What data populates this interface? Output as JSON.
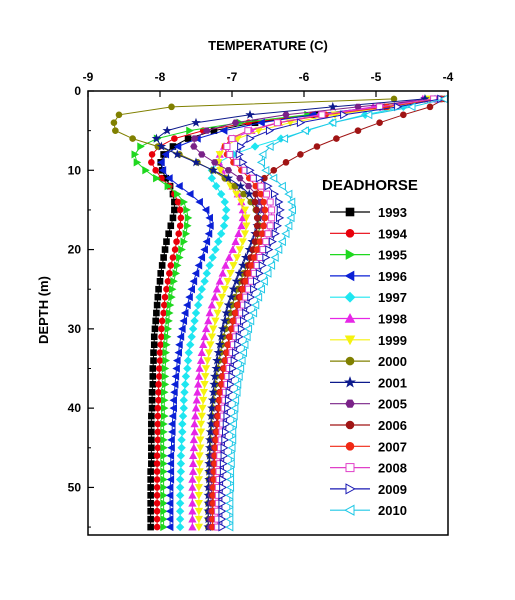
{
  "chart_data": {
    "type": "line",
    "title": "DEADHORSE",
    "xlabel": "TEMPERATURE (C)",
    "ylabel": "DEPTH (m)",
    "xlim": [
      -9,
      -4
    ],
    "ylim": [
      0,
      56
    ],
    "y_inverted": true,
    "x_axis_position": "top",
    "xticks": [
      -9,
      -8,
      -7,
      -6,
      -5,
      -4
    ],
    "yticks": [
      0,
      10,
      20,
      30,
      40,
      50
    ],
    "grid": false,
    "legend_position": "right",
    "depths": [
      1,
      2,
      3,
      4,
      5,
      6,
      7,
      8,
      9,
      10,
      11,
      12,
      13,
      14,
      15,
      16,
      17,
      18,
      19,
      20,
      21,
      22,
      23,
      24,
      25,
      26,
      27,
      28,
      29,
      30,
      31,
      32,
      33,
      34,
      35,
      36,
      37,
      38,
      39,
      40,
      41,
      42,
      43,
      44,
      45,
      46,
      47,
      48,
      49,
      50,
      51,
      52,
      53,
      54,
      55
    ],
    "series": [
      {
        "name": "1993",
        "color": "#000000",
        "marker": "square",
        "fill": true,
        "values": [
          -4.12,
          -4.85,
          -5.84,
          -6.68,
          -7.25,
          -7.61,
          -7.82,
          -7.95,
          -7.99,
          -7.97,
          -7.92,
          -7.86,
          -7.82,
          -7.8,
          -7.8,
          -7.82,
          -7.85,
          -7.88,
          -7.91,
          -7.93,
          -7.95,
          -7.97,
          -7.99,
          -8.0,
          -8.02,
          -8.03,
          -8.04,
          -8.05,
          -8.06,
          -8.07,
          -8.08,
          -8.08,
          -8.09,
          -8.09,
          -8.1,
          -8.1,
          -8.1,
          -8.11,
          -8.11,
          -8.11,
          -8.12,
          -8.12,
          -8.12,
          -8.12,
          -8.12,
          -8.12,
          -8.12,
          -8.13,
          -8.13,
          -8.13,
          -8.13,
          -8.13,
          -8.13,
          -8.13,
          -8.13
        ]
      },
      {
        "name": "1994",
        "color": "#e8000b",
        "marker": "circle",
        "fill": true,
        "values": [
          -4.17,
          -4.87,
          -5.89,
          -6.77,
          -7.4,
          -7.8,
          -8.01,
          -8.11,
          -8.12,
          -8.06,
          -7.98,
          -7.87,
          -7.8,
          -7.75,
          -7.72,
          -7.71,
          -7.72,
          -7.74,
          -7.77,
          -7.79,
          -7.82,
          -7.85,
          -7.87,
          -7.89,
          -7.91,
          -7.93,
          -7.94,
          -7.95,
          -7.97,
          -7.98,
          -7.98,
          -7.99,
          -8.0,
          -8.0,
          -8.01,
          -8.01,
          -8.02,
          -8.02,
          -8.02,
          -8.03,
          -8.03,
          -8.03,
          -8.03,
          -8.03,
          -8.03,
          -8.04,
          -8.04,
          -8.04,
          -8.04,
          -8.04,
          -8.04,
          -8.04,
          -8.04,
          -8.04,
          -8.04
        ]
      },
      {
        "name": "1995",
        "color": "#1fd81f",
        "marker": "triangle-right",
        "fill": true,
        "values": [
          -4.28,
          -4.91,
          -5.95,
          -6.89,
          -7.59,
          -8.04,
          -8.27,
          -8.35,
          -8.32,
          -8.2,
          -8.05,
          -7.89,
          -7.76,
          -7.67,
          -7.63,
          -7.61,
          -7.62,
          -7.64,
          -7.67,
          -7.7,
          -7.73,
          -7.76,
          -7.78,
          -7.81,
          -7.83,
          -7.84,
          -7.86,
          -7.87,
          -7.88,
          -7.89,
          -7.9,
          -7.91,
          -7.92,
          -7.92,
          -7.93,
          -7.93,
          -7.93,
          -7.94,
          -7.94,
          -7.94,
          -7.94,
          -7.95,
          -7.95,
          -7.95,
          -7.95,
          -7.95,
          -7.95,
          -7.95,
          -7.95,
          -7.95,
          -7.95,
          -7.95,
          -7.95,
          -7.95,
          -7.95
        ]
      },
      {
        "name": "1996",
        "color": "#0a1fd6",
        "marker": "triangle-left",
        "fill": true,
        "values": [
          -4.22,
          -4.98,
          -5.88,
          -6.59,
          -7.11,
          -7.48,
          -7.75,
          -7.92,
          -7.98,
          -7.96,
          -7.87,
          -7.73,
          -7.58,
          -7.45,
          -7.36,
          -7.31,
          -7.3,
          -7.32,
          -7.35,
          -7.38,
          -7.42,
          -7.46,
          -7.5,
          -7.53,
          -7.56,
          -7.59,
          -7.62,
          -7.65,
          -7.67,
          -7.69,
          -7.71,
          -7.73,
          -7.74,
          -7.76,
          -7.77,
          -7.78,
          -7.79,
          -7.8,
          -7.81,
          -7.81,
          -7.82,
          -7.83,
          -7.83,
          -7.84,
          -7.84,
          -7.85,
          -7.85,
          -7.85,
          -7.85,
          -7.86,
          -7.86,
          -7.86,
          -7.86,
          -7.86,
          -7.86
        ]
      },
      {
        "name": "1997",
        "color": "#1ee6f0",
        "marker": "diamond",
        "fill": true,
        "values": [
          -4.18,
          -4.62,
          -5.15,
          -5.6,
          -5.96,
          -6.32,
          -6.68,
          -6.98,
          -7.19,
          -7.28,
          -7.28,
          -7.22,
          -7.15,
          -7.1,
          -7.08,
          -7.09,
          -7.11,
          -7.15,
          -7.19,
          -7.23,
          -7.27,
          -7.31,
          -7.35,
          -7.38,
          -7.42,
          -7.45,
          -7.47,
          -7.5,
          -7.52,
          -7.54,
          -7.56,
          -7.58,
          -7.6,
          -7.61,
          -7.62,
          -7.64,
          -7.65,
          -7.66,
          -7.67,
          -7.67,
          -7.68,
          -7.69,
          -7.69,
          -7.7,
          -7.7,
          -7.71,
          -7.71,
          -7.71,
          -7.72,
          -7.72,
          -7.72,
          -7.72,
          -7.72,
          -7.72,
          -7.72
        ]
      },
      {
        "name": "1998",
        "color": "#e626e6",
        "marker": "triangle-up",
        "fill": true,
        "values": [
          -4.35,
          -5.04,
          -5.79,
          -6.35,
          -6.73,
          -6.98,
          -7.11,
          -7.17,
          -7.18,
          -7.14,
          -7.07,
          -6.99,
          -6.92,
          -6.87,
          -6.85,
          -6.85,
          -6.87,
          -6.91,
          -6.95,
          -6.99,
          -7.04,
          -7.09,
          -7.13,
          -7.17,
          -7.21,
          -7.24,
          -7.28,
          -7.31,
          -7.33,
          -7.36,
          -7.38,
          -7.4,
          -7.42,
          -7.43,
          -7.45,
          -7.46,
          -7.47,
          -7.48,
          -7.49,
          -7.5,
          -7.51,
          -7.52,
          -7.52,
          -7.53,
          -7.53,
          -7.54,
          -7.54,
          -7.54,
          -7.55,
          -7.55,
          -7.55,
          -7.55,
          -7.55,
          -7.55,
          -7.55
        ]
      },
      {
        "name": "1999",
        "color": "#f5f20f",
        "marker": "triangle-down",
        "fill": true,
        "values": [
          -4.25,
          -4.82,
          -5.57,
          -6.19,
          -6.63,
          -6.92,
          -7.09,
          -7.17,
          -7.19,
          -7.16,
          -7.1,
          -7.02,
          -6.94,
          -6.87,
          -6.82,
          -6.8,
          -6.8,
          -6.82,
          -6.85,
          -6.89,
          -6.93,
          -6.98,
          -7.02,
          -7.06,
          -7.1,
          -7.14,
          -7.17,
          -7.2,
          -7.23,
          -7.26,
          -7.28,
          -7.3,
          -7.32,
          -7.34,
          -7.36,
          -7.37,
          -7.38,
          -7.39,
          -7.4,
          -7.41,
          -7.42,
          -7.43,
          -7.43,
          -7.44,
          -7.44,
          -7.45,
          -7.45,
          -7.45,
          -7.46,
          -7.46,
          -7.46,
          -7.46,
          -7.46,
          -7.46,
          -7.46
        ]
      },
      {
        "name": "2000",
        "color": "#808000",
        "marker": "circle",
        "fill": true,
        "values": [
          -4.75,
          -7.84,
          -8.57,
          -8.64,
          -8.62,
          -8.38,
          -8.03,
          -7.73,
          -7.48,
          -7.27,
          -7.1,
          -6.96,
          -6.84,
          -6.74,
          -6.67,
          -6.63,
          -6.62,
          -6.63,
          -6.66,
          -6.7,
          -6.74,
          -6.79,
          -6.84,
          -6.88,
          -6.92,
          -6.96,
          -7.0,
          -7.03,
          -7.06,
          -7.09,
          -7.12,
          -7.14,
          -7.16,
          -7.18,
          -7.2,
          -7.22,
          -7.23,
          -7.24,
          -7.26,
          -7.27,
          -7.28,
          -7.28,
          -7.29,
          -7.3,
          -7.3,
          -7.31,
          -7.31,
          -7.32,
          -7.32,
          -7.32,
          -7.32,
          -7.33,
          -7.33,
          -7.33,
          -7.33
        ]
      },
      {
        "name": "2001",
        "color": "#0d1a8c",
        "marker": "star",
        "fill": true,
        "values": [
          -4.32,
          -5.6,
          -6.75,
          -7.5,
          -7.9,
          -8.05,
          -7.98,
          -7.76,
          -7.5,
          -7.26,
          -7.05,
          -6.88,
          -6.76,
          -6.68,
          -6.64,
          -6.63,
          -6.65,
          -6.68,
          -6.72,
          -6.76,
          -6.81,
          -6.85,
          -6.9,
          -6.94,
          -6.98,
          -7.01,
          -7.05,
          -7.08,
          -7.1,
          -7.13,
          -7.15,
          -7.17,
          -7.19,
          -7.21,
          -7.22,
          -7.24,
          -7.25,
          -7.26,
          -7.27,
          -7.28,
          -7.29,
          -7.29,
          -7.3,
          -7.31,
          -7.31,
          -7.31,
          -7.32,
          -7.32,
          -7.32,
          -7.33,
          -7.33,
          -7.33,
          -7.33,
          -7.33,
          -7.33
        ]
      },
      {
        "name": "2005",
        "color": "#7a2288",
        "marker": "hexagon",
        "fill": true,
        "values": [
          -4.15,
          -5.25,
          -6.25,
          -6.95,
          -7.35,
          -7.52,
          -7.53,
          -7.42,
          -7.24,
          -7.05,
          -6.89,
          -6.77,
          -6.67,
          -6.61,
          -6.57,
          -6.55,
          -6.56,
          -6.58,
          -6.61,
          -6.64,
          -6.68,
          -6.72,
          -6.76,
          -6.8,
          -6.84,
          -6.88,
          -6.91,
          -6.94,
          -6.97,
          -7.0,
          -7.03,
          -7.05,
          -7.08,
          -7.1,
          -7.12,
          -7.14,
          -7.15,
          -7.17,
          -7.18,
          -7.2,
          -7.21,
          -7.22,
          -7.23,
          -7.24,
          -7.25,
          -7.26,
          -7.26,
          -7.27,
          -7.28,
          -7.28,
          -7.29,
          -7.29,
          -7.29,
          -7.3,
          -7.3
        ]
      },
      {
        "name": "2006",
        "color": "#a01414",
        "marker": "circle",
        "fill": true,
        "values": [
          -4.05,
          -4.25,
          -4.62,
          -4.95,
          -5.25,
          -5.55,
          -5.82,
          -6.05,
          -6.25,
          -6.42,
          -6.55,
          -6.63,
          -6.67,
          -6.68,
          -6.66,
          -6.65,
          -6.65,
          -6.66,
          -6.68,
          -6.71,
          -6.74,
          -6.77,
          -6.8,
          -6.84,
          -6.87,
          -6.9,
          -6.93,
          -6.96,
          -6.99,
          -7.01,
          -7.04,
          -7.06,
          -7.08,
          -7.1,
          -7.12,
          -7.14,
          -7.15,
          -7.17,
          -7.18,
          -7.19,
          -7.2,
          -7.21,
          -7.22,
          -7.23,
          -7.24,
          -7.24,
          -7.25,
          -7.25,
          -7.26,
          -7.26,
          -7.27,
          -7.27,
          -7.27,
          -7.27,
          -7.27
        ]
      },
      {
        "name": "2007",
        "color": "#f02814",
        "marker": "circle",
        "fill": true,
        "values": [
          -4.1,
          -4.85,
          -5.7,
          -6.35,
          -6.78,
          -7.02,
          -7.1,
          -7.07,
          -6.98,
          -6.87,
          -6.76,
          -6.67,
          -6.6,
          -6.56,
          -6.54,
          -6.54,
          -6.56,
          -6.58,
          -6.61,
          -6.65,
          -6.69,
          -6.73,
          -6.77,
          -6.81,
          -6.85,
          -6.88,
          -6.92,
          -6.95,
          -6.98,
          -7.0,
          -7.03,
          -7.05,
          -7.07,
          -7.09,
          -7.11,
          -7.13,
          -7.14,
          -7.16,
          -7.17,
          -7.18,
          -7.19,
          -7.2,
          -7.21,
          -7.22,
          -7.23,
          -7.24,
          -7.24,
          -7.25,
          -7.25,
          -7.26,
          -7.26,
          -7.26,
          -7.27,
          -7.27,
          -7.27
        ]
      },
      {
        "name": "2008",
        "color": "#e040c8",
        "marker": "square",
        "fill": false,
        "values": [
          -4.2,
          -4.95,
          -5.75,
          -6.37,
          -6.78,
          -7.0,
          -7.07,
          -7.03,
          -6.93,
          -6.82,
          -6.7,
          -6.6,
          -6.52,
          -6.47,
          -6.45,
          -6.45,
          -6.47,
          -6.5,
          -6.53,
          -6.57,
          -6.61,
          -6.65,
          -6.69,
          -6.73,
          -6.77,
          -6.81,
          -6.84,
          -6.87,
          -6.9,
          -6.93,
          -6.95,
          -6.98,
          -7.0,
          -7.02,
          -7.04,
          -7.06,
          -7.07,
          -7.09,
          -7.1,
          -7.11,
          -7.12,
          -7.13,
          -7.14,
          -7.15,
          -7.16,
          -7.17,
          -7.17,
          -7.18,
          -7.18,
          -7.19,
          -7.19,
          -7.19,
          -7.2,
          -7.2,
          -7.2
        ]
      },
      {
        "name": "2009",
        "color": "#1a1ab4",
        "marker": "triangle-right",
        "fill": false,
        "values": [
          -4.1,
          -4.7,
          -5.45,
          -6.05,
          -6.48,
          -6.75,
          -6.88,
          -6.9,
          -6.85,
          -6.75,
          -6.62,
          -6.5,
          -6.41,
          -6.35,
          -6.33,
          -6.34,
          -6.37,
          -6.4,
          -6.44,
          -6.49,
          -6.53,
          -6.58,
          -6.62,
          -6.66,
          -6.7,
          -6.74,
          -6.78,
          -6.81,
          -6.84,
          -6.87,
          -6.9,
          -6.92,
          -6.95,
          -6.97,
          -6.99,
          -7.0,
          -7.02,
          -7.04,
          -7.05,
          -7.06,
          -7.07,
          -7.08,
          -7.09,
          -7.1,
          -7.11,
          -7.11,
          -7.12,
          -7.12,
          -7.13,
          -7.13,
          -7.14,
          -7.14,
          -7.14,
          -7.14,
          -7.14
        ]
      },
      {
        "name": "2010",
        "color": "#20c8e6",
        "marker": "triangle-left",
        "fill": false,
        "values": [
          -4.05,
          -4.5,
          -5.1,
          -5.6,
          -5.98,
          -6.27,
          -6.47,
          -6.57,
          -6.59,
          -6.53,
          -6.42,
          -6.3,
          -6.21,
          -6.17,
          -6.16,
          -6.18,
          -6.21,
          -6.25,
          -6.3,
          -6.35,
          -6.4,
          -6.45,
          -6.5,
          -6.55,
          -6.59,
          -6.63,
          -6.67,
          -6.7,
          -6.74,
          -6.77,
          -6.79,
          -6.82,
          -6.84,
          -6.86,
          -6.88,
          -6.9,
          -6.92,
          -6.93,
          -6.95,
          -6.96,
          -6.97,
          -6.98,
          -6.99,
          -6.99,
          -7.0,
          -7.01,
          -7.01,
          -7.02,
          -7.02,
          -7.02,
          -7.03,
          -7.03,
          -7.03,
          -7.03,
          -7.03
        ]
      }
    ]
  }
}
